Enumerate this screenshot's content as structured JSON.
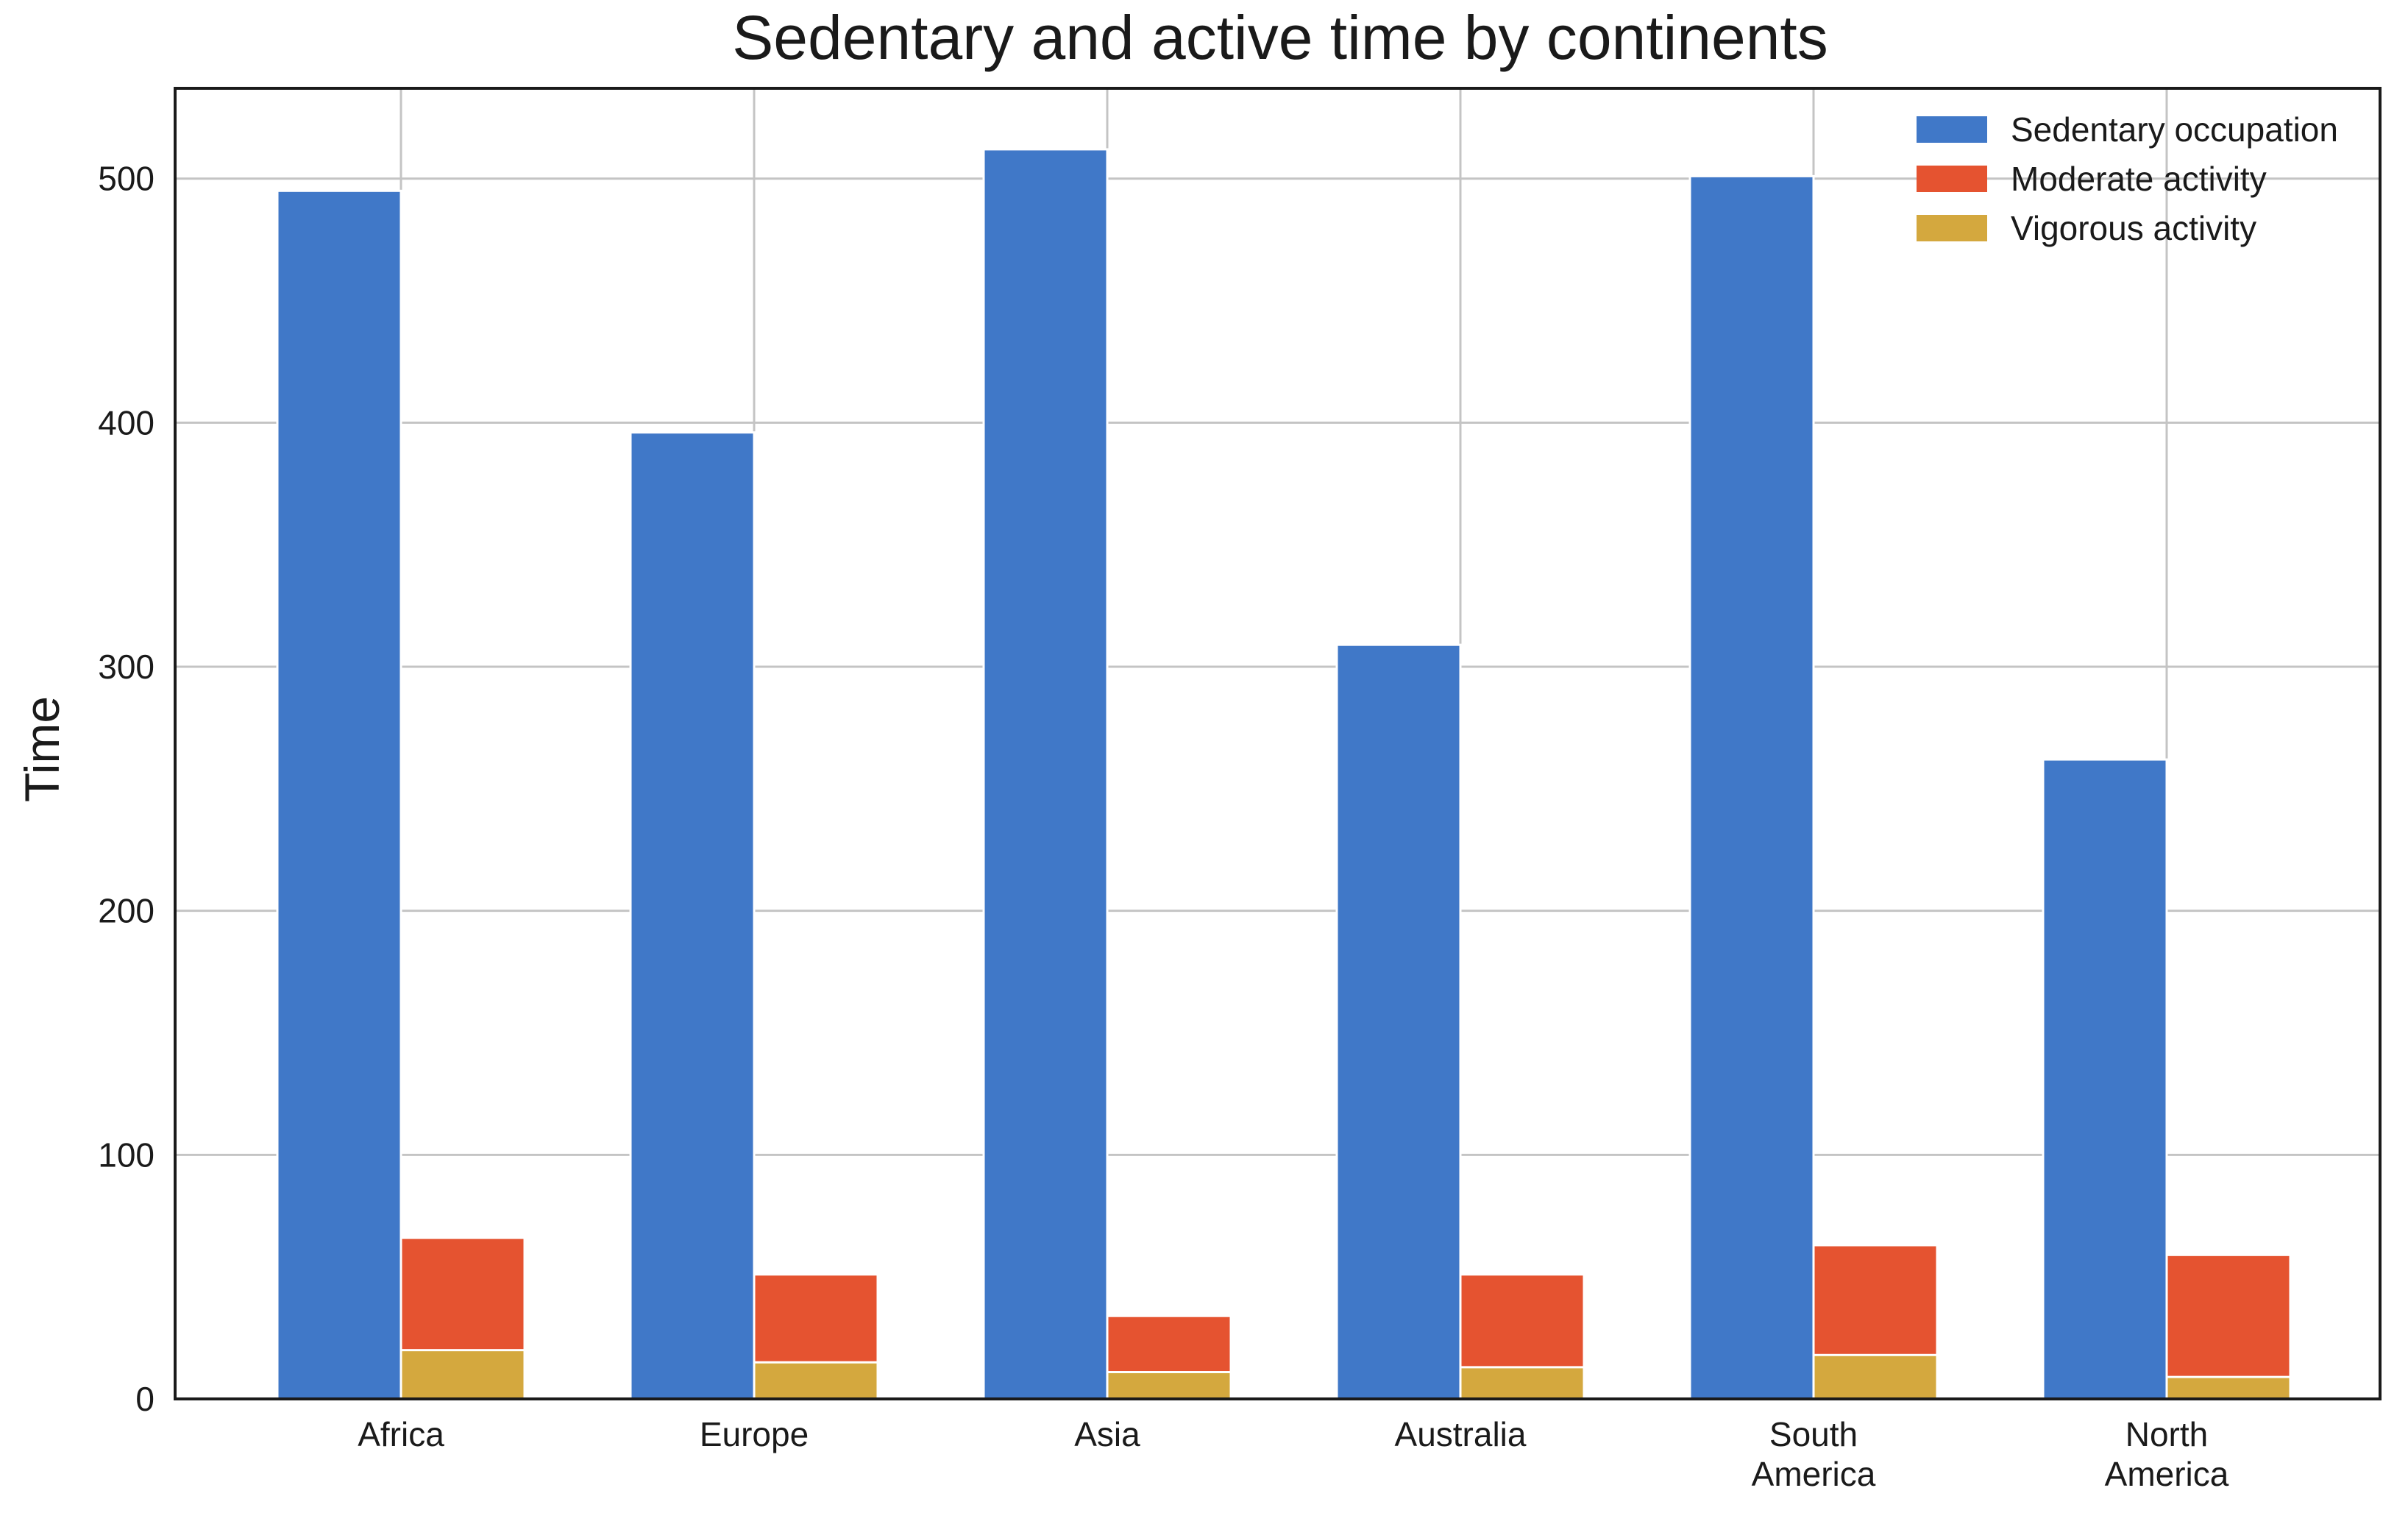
{
  "chart_data": {
    "type": "bar",
    "title": "Sedentary and active time by continents",
    "xlabel": "",
    "ylabel": "Time",
    "ylim": [
      0,
      537
    ],
    "yticks": [
      0,
      100,
      200,
      300,
      400,
      500
    ],
    "grid": true,
    "legend_position": "top-right",
    "categories": [
      [
        "Africa"
      ],
      [
        "Europe"
      ],
      [
        "Asia"
      ],
      [
        "Australia"
      ],
      [
        "South",
        "America"
      ],
      [
        "North",
        "America"
      ]
    ],
    "series": [
      {
        "name": "Sedentary occupation",
        "color": "#4078c8",
        "group": "left",
        "values": [
          495,
          396,
          512,
          309,
          501,
          262
        ]
      },
      {
        "name": "Moderate activity",
        "color": "#e55330",
        "group": "right",
        "stacked_total": true,
        "values": [
          66,
          51,
          34,
          51,
          63,
          59
        ]
      },
      {
        "name": "Vigorous activity",
        "color": "#d4a83e",
        "group": "right",
        "values": [
          20,
          15,
          11,
          13,
          18,
          9
        ]
      }
    ]
  }
}
